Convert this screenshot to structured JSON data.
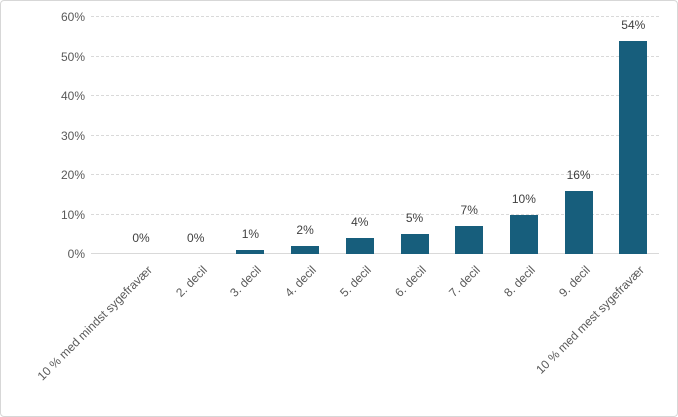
{
  "chart_data": {
    "type": "bar",
    "title": "",
    "xlabel": "",
    "ylabel": "",
    "categories": [
      "10 % med mindst sygefravær",
      "2. decil",
      "3. decil",
      "4. decil",
      "5. decil",
      "6. decil",
      "7. decil",
      "8. decil",
      "9. decil",
      "10 % med mest sygefravær"
    ],
    "values": [
      0,
      0,
      1,
      2,
      4,
      5,
      7,
      10,
      16,
      54
    ],
    "data_labels": [
      "0%",
      "0%",
      "1%",
      "2%",
      "4%",
      "5%",
      "7%",
      "10%",
      "16%",
      "54%"
    ],
    "ylim": [
      0,
      60
    ],
    "ytick_values": [
      0,
      10,
      20,
      30,
      40,
      50,
      60
    ],
    "ytick_labels": [
      "0%",
      "10%",
      "20%",
      "30%",
      "40%",
      "50%",
      "60%"
    ],
    "grid": "horizontal-dashed",
    "legend": "none",
    "colors": {
      "bar_fill": "#175e7c",
      "data_label": "#404040",
      "axis_label": "#595959",
      "gridline": "#d9d9d9",
      "frame_border": "#d7d7d7",
      "background": "#ffffff"
    }
  }
}
